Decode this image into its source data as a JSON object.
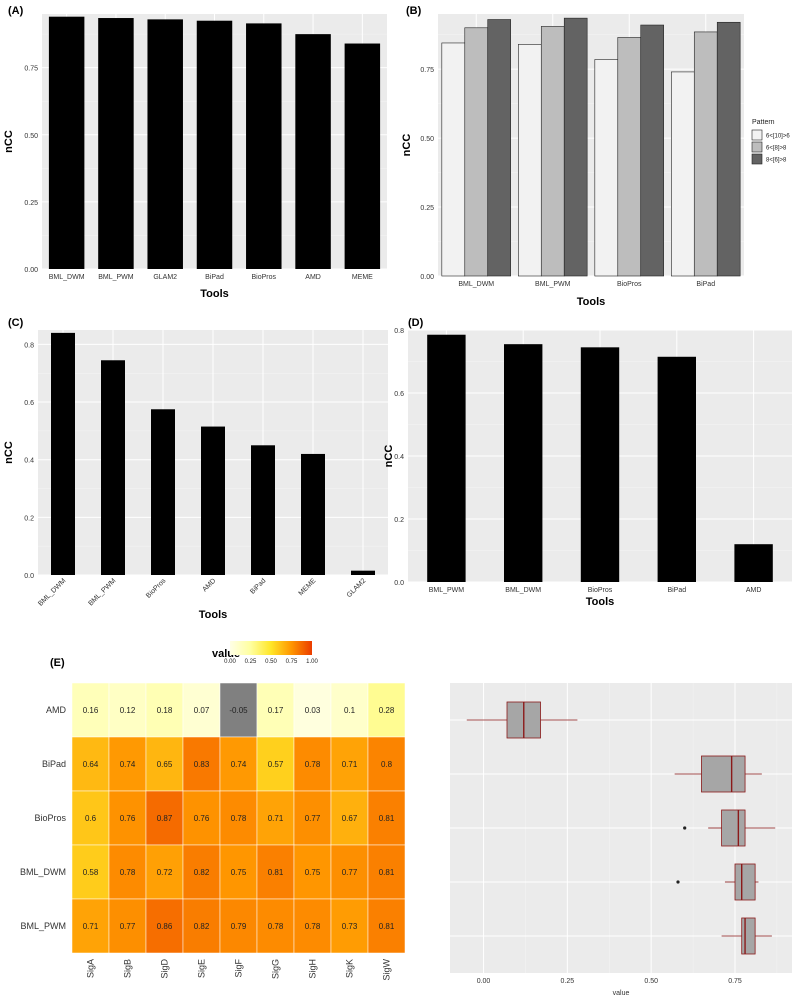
{
  "chart_data": [
    {
      "panel": "(A)",
      "type": "bar",
      "categories": [
        "BML_DWM",
        "BML_PWM",
        "GLAM2",
        "BiPad",
        "BioPros",
        "AMD",
        "MEME"
      ],
      "values": [
        0.94,
        0.935,
        0.93,
        0.925,
        0.915,
        0.875,
        0.84
      ],
      "xlabel": "Tools",
      "ylabel": "nCC",
      "ylim": [
        0,
        0.95
      ],
      "yticks": [
        "0.00",
        "0.25",
        "0.50",
        "0.75"
      ],
      "grid": true
    },
    {
      "panel": "(B)",
      "type": "bar",
      "categories": [
        "BML_DWM",
        "BML_PWM",
        "BioPros",
        "BiPad"
      ],
      "series": [
        {
          "name": "6<[10]>6",
          "values": [
            0.845,
            0.84,
            0.785,
            0.74
          ],
          "color": "#f2f2f2"
        },
        {
          "name": "6<[8]>8",
          "values": [
            0.9,
            0.905,
            0.865,
            0.885
          ],
          "color": "#bdbdbd"
        },
        {
          "name": "8<[6]>8",
          "values": [
            0.93,
            0.935,
            0.91,
            0.92
          ],
          "color": "#636363"
        }
      ],
      "xlabel": "Tools",
      "ylabel": "nCC",
      "ylim": [
        0,
        0.95
      ],
      "yticks": [
        "0.00",
        "0.25",
        "0.50",
        "0.75"
      ],
      "legend_title": "Pattern",
      "legend_position": "right",
      "grid": true
    },
    {
      "panel": "(C)",
      "type": "bar",
      "categories": [
        "BML_DWM",
        "BML_PWM",
        "BioPros",
        "AMD",
        "BiPad",
        "MEME",
        "GLAM2"
      ],
      "values": [
        0.84,
        0.745,
        0.575,
        0.515,
        0.45,
        0.42,
        0.015
      ],
      "xlabel": "Tools",
      "ylabel": "nCC",
      "ylim": [
        0,
        0.85
      ],
      "yticks": [
        "0.0",
        "0.2",
        "0.4",
        "0.6",
        "0.8"
      ],
      "grid": true
    },
    {
      "panel": "(D)",
      "type": "bar",
      "categories": [
        "BML_PWM",
        "BML_DWM",
        "BioPros",
        "BiPad",
        "AMD"
      ],
      "values": [
        0.785,
        0.755,
        0.745,
        0.715,
        0.12
      ],
      "xlabel": "Tools",
      "ylabel": "nCC",
      "ylim": [
        0,
        0.8
      ],
      "yticks": [
        "0.0",
        "0.2",
        "0.4",
        "0.6",
        "0.8"
      ],
      "grid": true
    },
    {
      "panel": "(E)",
      "type": "heatmap",
      "rows": [
        "AMD",
        "BiPad",
        "BioPros",
        "BML_DWM",
        "BML_PWM"
      ],
      "columns": [
        "SigA",
        "SigB",
        "SigD",
        "SigE",
        "SigF",
        "SigG",
        "SigH",
        "SigK",
        "SigW"
      ],
      "values": [
        [
          0.16,
          0.12,
          0.18,
          0.07,
          -0.05,
          0.17,
          0.03,
          0.1,
          0.28
        ],
        [
          0.64,
          0.74,
          0.65,
          0.83,
          0.74,
          0.57,
          0.78,
          0.71,
          0.8
        ],
        [
          0.6,
          0.76,
          0.87,
          0.76,
          0.78,
          0.71,
          0.77,
          0.67,
          0.81
        ],
        [
          0.58,
          0.78,
          0.72,
          0.82,
          0.75,
          0.81,
          0.75,
          0.77,
          0.81
        ],
        [
          0.71,
          0.77,
          0.86,
          0.82,
          0.79,
          0.78,
          0.78,
          0.73,
          0.81
        ]
      ],
      "labels": [
        [
          "0.16",
          "0.12",
          "0.18",
          "0.07",
          "-0.05",
          "0.17",
          "0.03",
          "0.1",
          "0.28"
        ],
        [
          "0.64",
          "0.74",
          "0.65",
          "0.83",
          "0.74",
          "0.57",
          "0.78",
          "0.71",
          "0.8"
        ],
        [
          "0.6",
          "0.76",
          "0.87",
          "0.76",
          "0.78",
          "0.71",
          "0.77",
          "0.67",
          "0.81"
        ],
        [
          "0.58",
          "0.78",
          "0.72",
          "0.82",
          "0.75",
          "0.81",
          "0.75",
          "0.77",
          "0.81"
        ],
        [
          "0.71",
          "0.77",
          "0.86",
          "0.82",
          "0.79",
          "0.78",
          "0.78",
          "0.73",
          "0.81"
        ]
      ],
      "colorbar": {
        "title": "value",
        "ticks": [
          "0.00",
          "0.25",
          "0.50",
          "0.75",
          "1.00"
        ],
        "range": [
          0,
          1
        ],
        "out_of_range_color": "#808080"
      }
    },
    {
      "panel": "(E) boxplot",
      "type": "box",
      "rows": [
        "AMD",
        "BiPad",
        "BioPros",
        "BML_DWM",
        "BML_PWM"
      ],
      "boxes": [
        {
          "min": -0.05,
          "q1": 0.07,
          "median": 0.12,
          "q3": 0.17,
          "max": 0.28,
          "outliers": []
        },
        {
          "min": 0.57,
          "q1": 0.65,
          "median": 0.74,
          "q3": 0.78,
          "max": 0.83,
          "outliers": []
        },
        {
          "min": 0.67,
          "q1": 0.71,
          "median": 0.76,
          "q3": 0.78,
          "max": 0.87,
          "outliers": [
            0.6
          ]
        },
        {
          "min": 0.72,
          "q1": 0.75,
          "median": 0.77,
          "q3": 0.81,
          "max": 0.82,
          "outliers": [
            0.58
          ]
        },
        {
          "min": 0.71,
          "q1": 0.77,
          "median": 0.78,
          "q3": 0.81,
          "max": 0.86,
          "outliers": []
        }
      ],
      "xlabel": "value",
      "xticks": [
        "0.00",
        "0.25",
        "0.50",
        "0.75"
      ],
      "xlim": [
        -0.1,
        0.92
      ],
      "box_fill": "#a6a6a6",
      "box_stroke": "#8b1a1a"
    }
  ]
}
